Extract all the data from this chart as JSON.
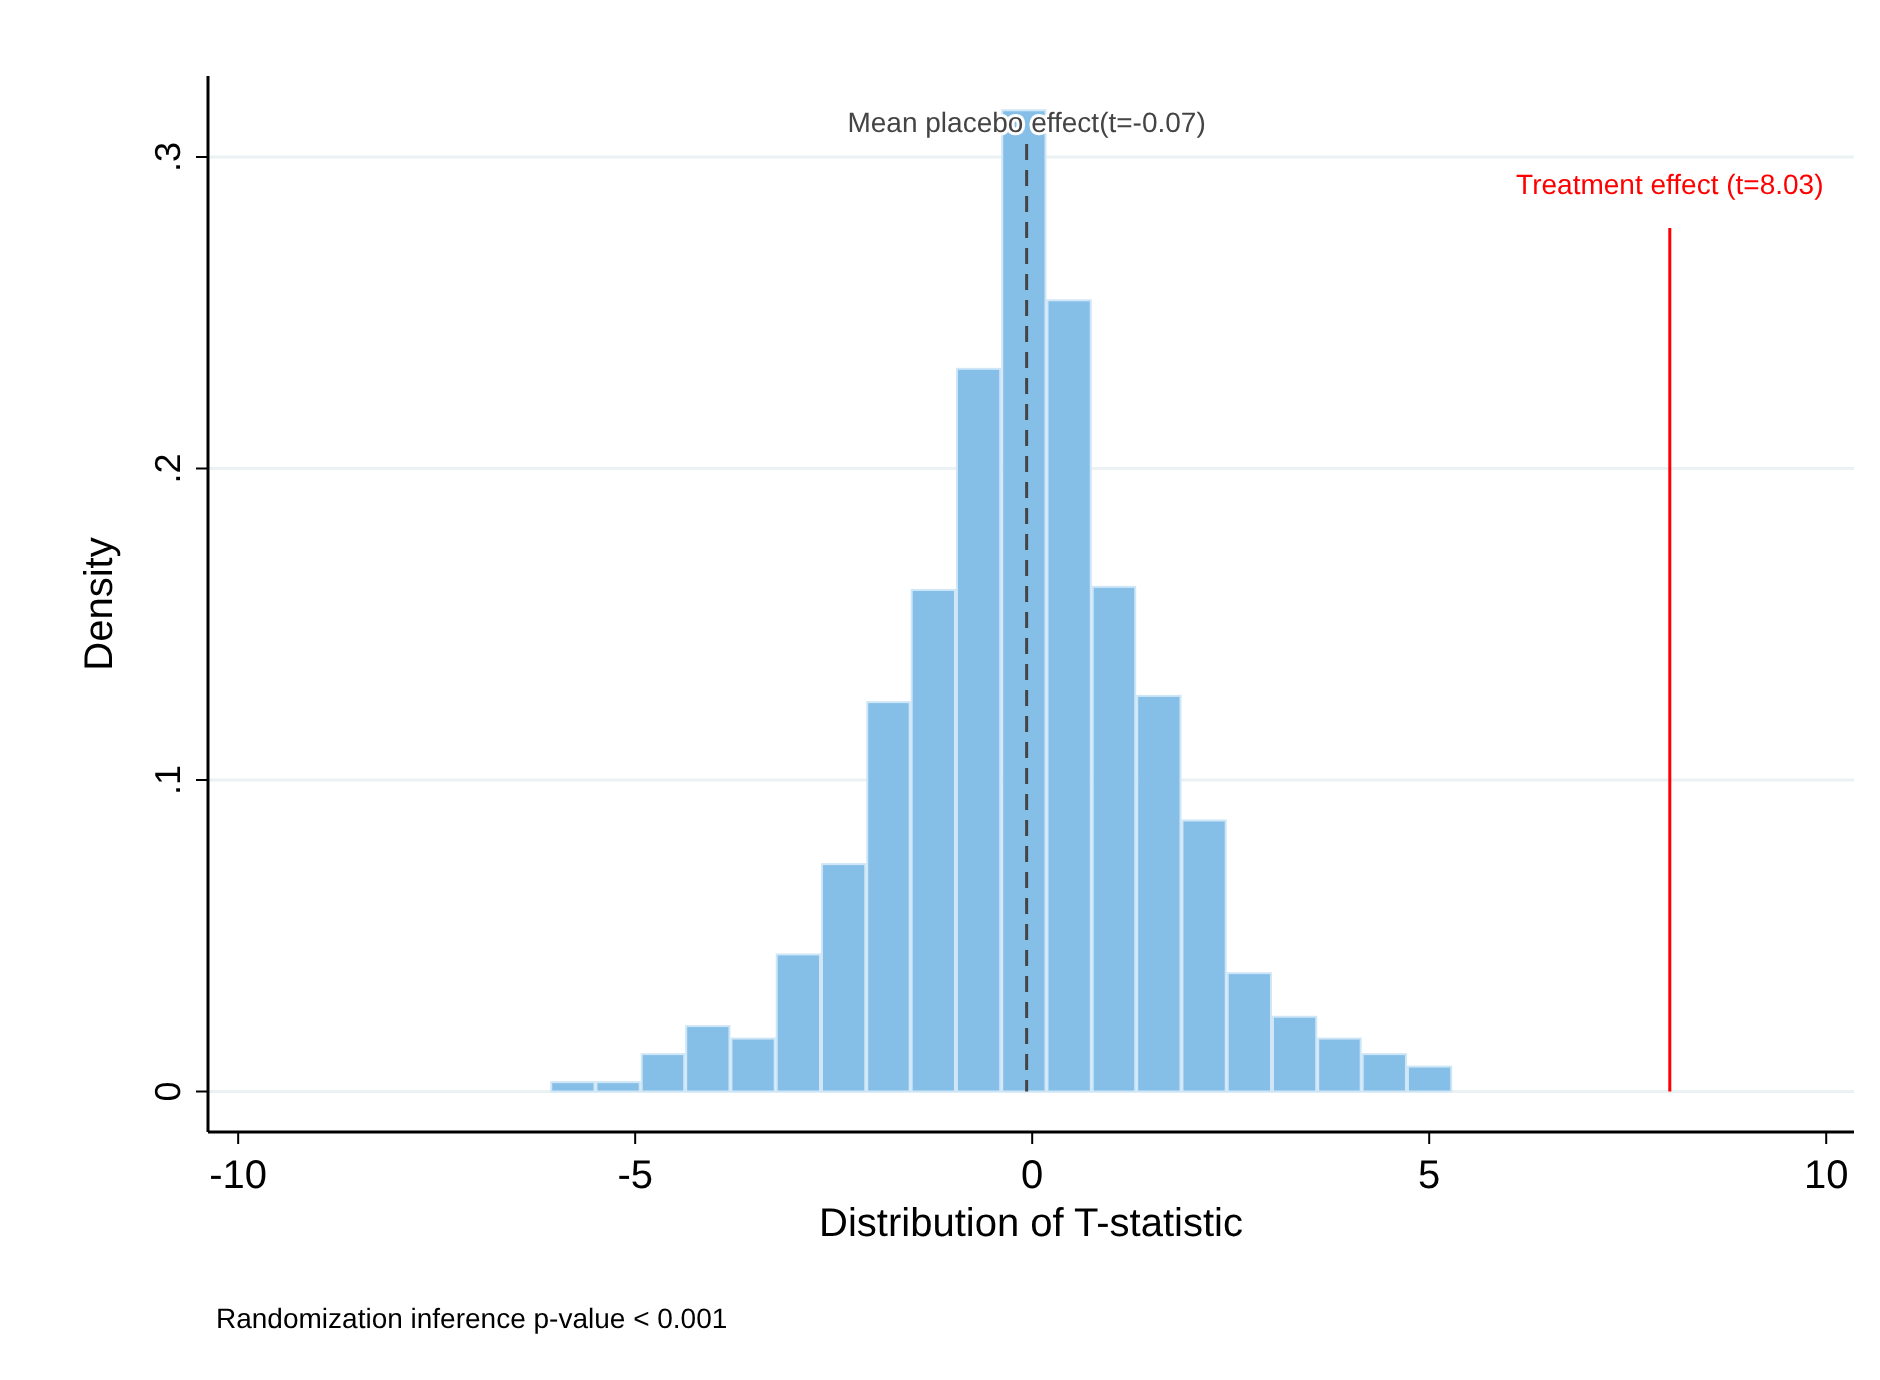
{
  "chart_data": {
    "type": "histogram",
    "xlabel": "Distribution of T-statistic",
    "ylabel": "Density",
    "bins": [
      -6.07,
      -5.5,
      -4.93,
      -4.37,
      -3.8,
      -3.23,
      -2.66,
      -2.09,
      -1.53,
      -0.96,
      -0.39,
      0.18,
      0.75,
      1.31,
      1.88,
      2.45,
      3.02,
      3.59,
      4.15,
      4.72,
      5.29
    ],
    "values": [
      0.003,
      0.003,
      0.012,
      0.021,
      0.017,
      0.044,
      0.073,
      0.125,
      0.161,
      0.232,
      0.315,
      0.254,
      0.162,
      0.127,
      0.087,
      0.038,
      0.024,
      0.017,
      0.012,
      0.008
    ],
    "color": "#85bfe8",
    "xlim": [
      -10.38,
      10.35
    ],
    "xticks": [
      -10,
      -5,
      0,
      5,
      10
    ],
    "ylim": [
      -0.013,
      0.326
    ],
    "yticks": [
      {
        "value": 0,
        "label": "0"
      },
      {
        "value": 0.1,
        "label": ".1"
      },
      {
        "value": 0.2,
        "label": ".2"
      },
      {
        "value": 0.3,
        "label": ".3"
      }
    ],
    "grid": "y",
    "ref_lines": [
      {
        "axis": "x",
        "value": -0.07,
        "label": "Mean placebo effect(t=-0.07)",
        "color": "#444444",
        "line_style": "dashed"
      },
      {
        "axis": "x",
        "value": 8.03,
        "label": "Treatment effect (t=8.03)",
        "color": "#ff0000",
        "line_style": "solid"
      }
    ],
    "annotations": [
      "Randomization inference p-value < 0.001"
    ]
  }
}
